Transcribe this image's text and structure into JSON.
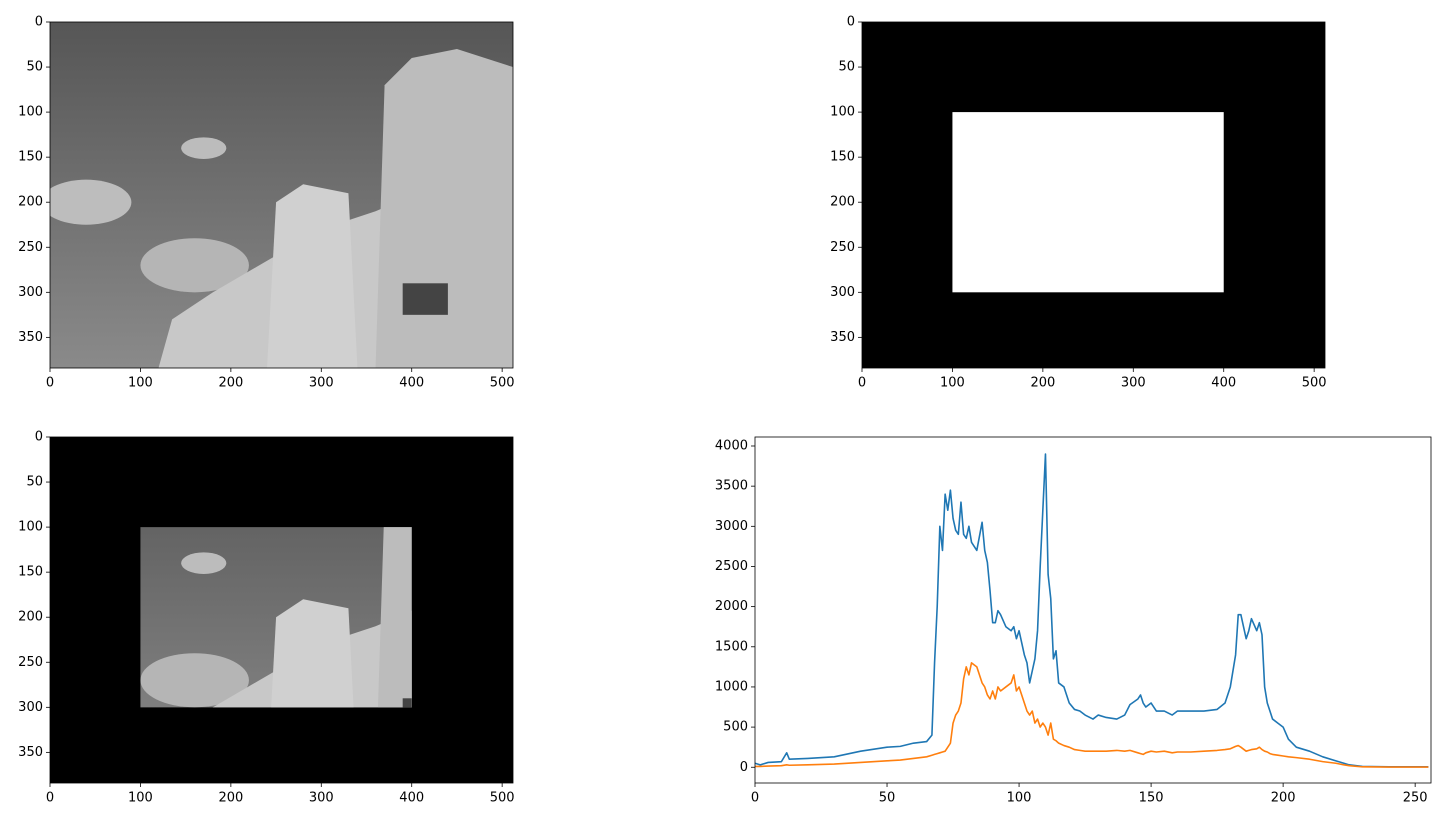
{
  "chart_data": [
    {
      "type": "image",
      "xlim": [
        0,
        512
      ],
      "ylim": [
        384,
        0
      ],
      "xticks": [
        0,
        100,
        200,
        300,
        400,
        500
      ],
      "yticks": [
        0,
        50,
        100,
        150,
        200,
        250,
        300,
        350
      ]
    },
    {
      "type": "mask",
      "mask_rect": {
        "x": [
          100,
          400
        ],
        "y": [
          100,
          300
        ]
      },
      "xlim": [
        0,
        512
      ],
      "ylim": [
        384,
        0
      ],
      "xticks": [
        0,
        100,
        200,
        300,
        400,
        500
      ],
      "yticks": [
        0,
        50,
        100,
        150,
        200,
        250,
        300,
        350
      ]
    },
    {
      "type": "masked",
      "mask_rect": {
        "x": [
          100,
          400
        ],
        "y": [
          100,
          300
        ]
      },
      "xlim": [
        0,
        512
      ],
      "ylim": [
        384,
        0
      ],
      "xticks": [
        0,
        100,
        200,
        300,
        400,
        500
      ],
      "yticks": [
        0,
        50,
        100,
        150,
        200,
        250,
        300,
        350
      ]
    },
    {
      "type": "line",
      "xlim": [
        0,
        256
      ],
      "ylim": [
        -196,
        4112
      ],
      "xticks": [
        0,
        50,
        100,
        150,
        200,
        250
      ],
      "yticks": [
        0,
        500,
        1000,
        1500,
        2000,
        2500,
        3000,
        3500,
        4000
      ],
      "x": [
        0,
        2,
        5,
        10,
        12,
        13,
        20,
        30,
        40,
        50,
        55,
        60,
        65,
        67,
        68,
        69,
        70,
        71,
        72,
        73,
        74,
        75,
        76,
        77,
        78,
        79,
        80,
        81,
        82,
        84,
        86,
        87,
        88,
        89,
        90,
        91,
        92,
        93,
        95,
        97,
        98,
        99,
        100,
        102,
        103,
        104,
        105,
        106,
        107,
        108,
        109,
        110,
        111,
        112,
        113,
        114,
        115,
        117,
        119,
        121,
        123,
        125,
        128,
        130,
        133,
        137,
        140,
        142,
        145,
        146,
        147,
        148,
        150,
        152,
        155,
        158,
        160,
        165,
        170,
        175,
        178,
        180,
        182,
        183,
        184,
        186,
        187,
        188,
        190,
        191,
        192,
        193,
        194,
        195,
        196,
        198,
        200,
        202,
        205,
        210,
        215,
        220,
        223,
        225,
        230,
        240,
        250,
        255
      ],
      "series": [
        {
          "color": "#1f77b4",
          "values": [
            50,
            30,
            60,
            70,
            180,
            100,
            110,
            130,
            200,
            250,
            260,
            300,
            320,
            400,
            1300,
            2000,
            3000,
            2700,
            3400,
            3200,
            3450,
            3100,
            2950,
            2900,
            3300,
            2900,
            2850,
            3000,
            2800,
            2700,
            3050,
            2700,
            2550,
            2200,
            1800,
            1800,
            1950,
            1900,
            1750,
            1700,
            1750,
            1600,
            1700,
            1400,
            1300,
            1050,
            1200,
            1350,
            1700,
            2500,
            3200,
            3900,
            2400,
            2100,
            1350,
            1450,
            1050,
            1000,
            800,
            720,
            700,
            650,
            600,
            650,
            620,
            600,
            650,
            780,
            850,
            900,
            800,
            750,
            800,
            700,
            700,
            650,
            700,
            700,
            700,
            720,
            800,
            1000,
            1400,
            1900,
            1900,
            1600,
            1700,
            1850,
            1700,
            1800,
            1650,
            1000,
            800,
            700,
            600,
            550,
            500,
            350,
            250,
            200,
            130,
            80,
            50,
            30,
            10,
            5,
            5,
            5
          ]
        },
        {
          "color": "#ff7f0e",
          "values": [
            10,
            10,
            15,
            20,
            30,
            25,
            30,
            40,
            60,
            80,
            90,
            110,
            130,
            150,
            160,
            170,
            180,
            190,
            200,
            250,
            300,
            550,
            650,
            700,
            800,
            1100,
            1250,
            1150,
            1300,
            1250,
            1050,
            1000,
            900,
            850,
            950,
            850,
            1000,
            950,
            1000,
            1050,
            1150,
            950,
            1000,
            800,
            700,
            650,
            700,
            550,
            600,
            500,
            550,
            500,
            400,
            550,
            350,
            330,
            300,
            270,
            250,
            220,
            210,
            200,
            200,
            200,
            200,
            210,
            200,
            210,
            180,
            170,
            160,
            180,
            200,
            190,
            200,
            180,
            190,
            190,
            200,
            210,
            220,
            230,
            260,
            270,
            250,
            200,
            210,
            220,
            230,
            250,
            220,
            200,
            190,
            170,
            160,
            150,
            140,
            130,
            120,
            100,
            70,
            50,
            30,
            20,
            5,
            3,
            2,
            2
          ]
        }
      ]
    }
  ]
}
